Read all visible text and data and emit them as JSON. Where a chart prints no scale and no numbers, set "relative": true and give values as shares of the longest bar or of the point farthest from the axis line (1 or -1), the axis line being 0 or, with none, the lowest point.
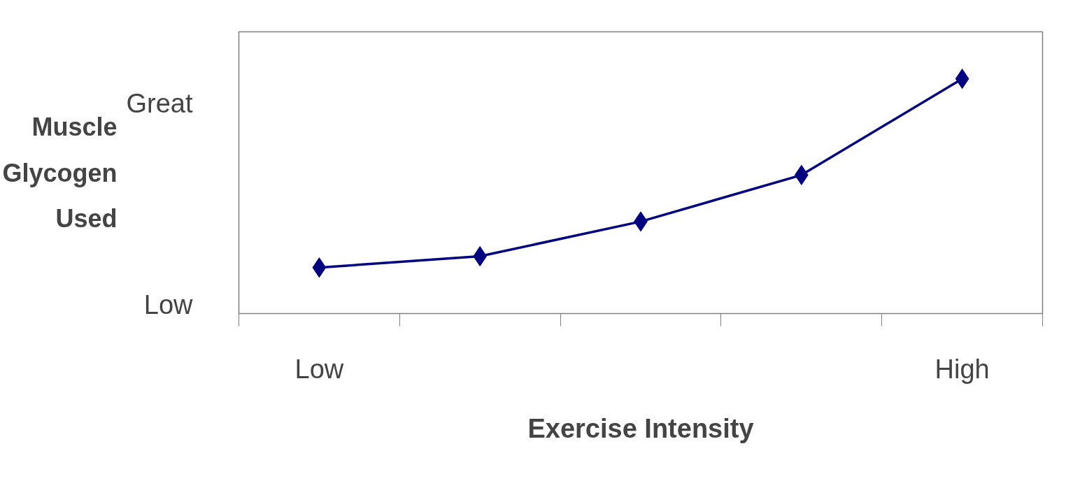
{
  "chart_data": {
    "type": "line",
    "relative": true,
    "xlabel": "Exercise Intensity",
    "ylabel": "Muscle Glycogen Used",
    "categories": [
      "Low",
      null,
      null,
      null,
      "High"
    ],
    "series": [
      {
        "color": "#000080",
        "values": [
          0.196,
          0.244,
          0.392,
          0.59,
          1
        ]
      }
    ],
    "marker": "diamond",
    "grid": false,
    "annotations": [
      "Great",
      "Low"
    ]
  }
}
